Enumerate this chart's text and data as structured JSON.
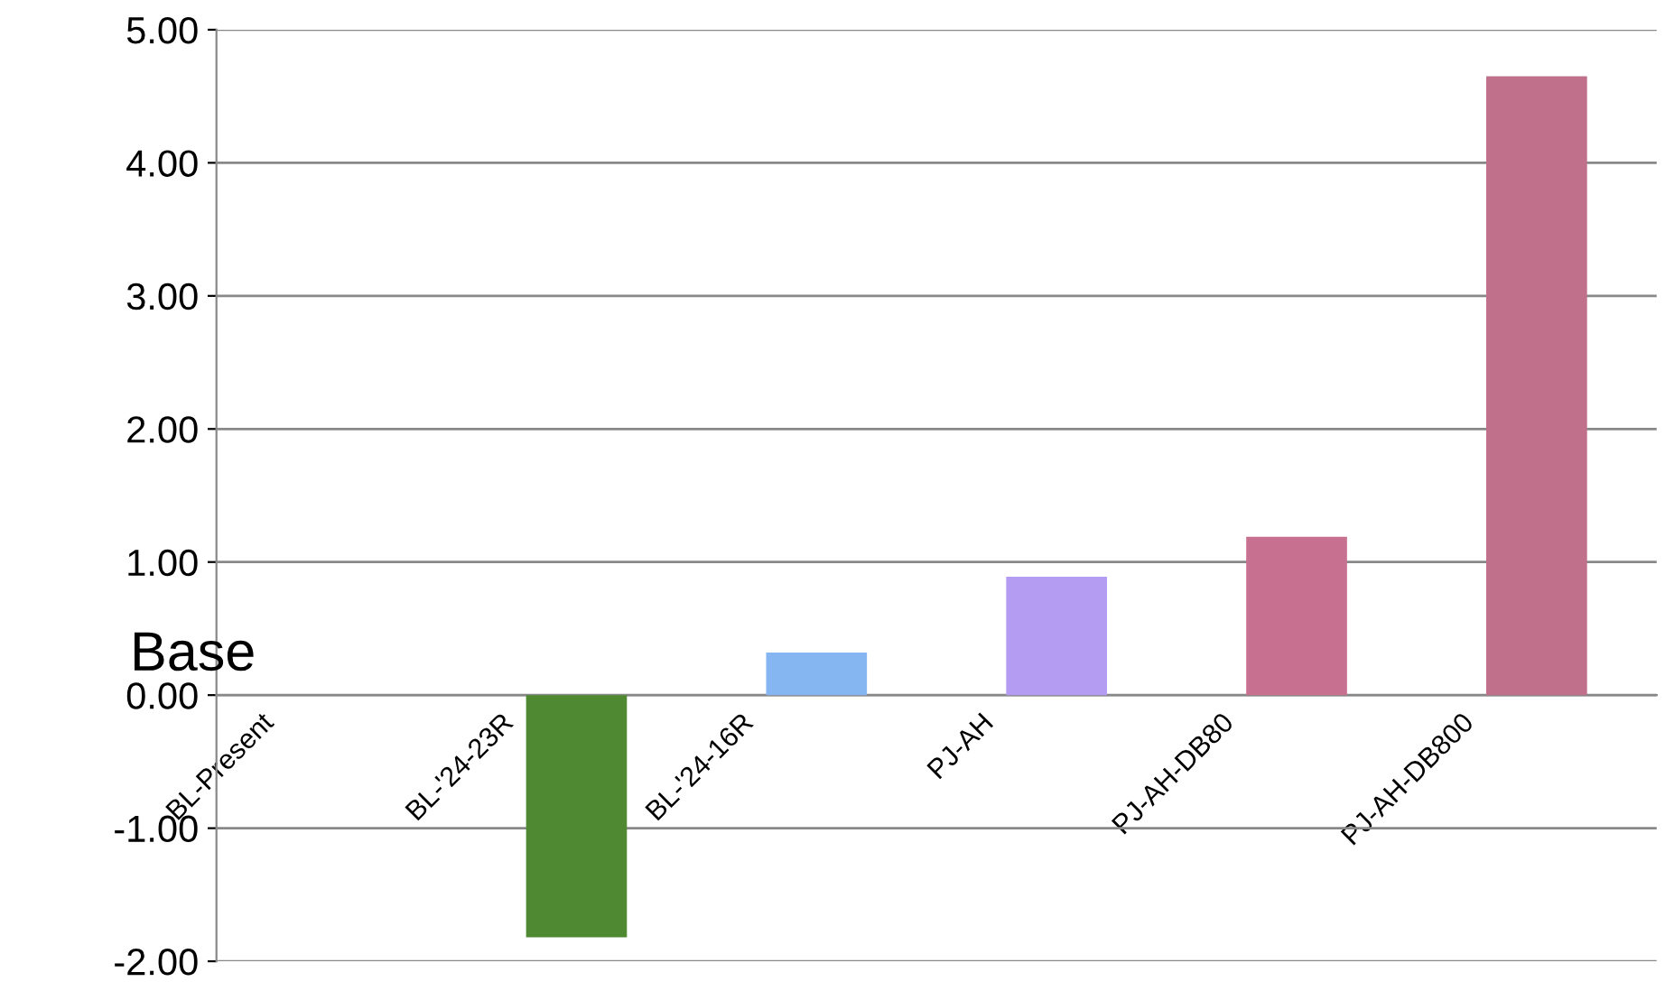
{
  "chart_data": {
    "type": "bar",
    "categories": [
      "BL-Present",
      "BL-'24-23R",
      "BL-'24-16R",
      "PJ-AH",
      "PJ-AH-DB80",
      "PJ-AH-DB800"
    ],
    "values": [
      0,
      -1.82,
      0.32,
      0.89,
      1.19,
      4.65
    ],
    "colors": [
      "#8fbcf5",
      "#4f8a32",
      "#86b6f2",
      "#b49cf2",
      "#c8708f",
      "#c0708a"
    ],
    "ylim": [
      -2,
      5
    ],
    "yticks": [
      {
        "value": -2,
        "label": "-2.00"
      },
      {
        "value": -1,
        "label": "-1.00"
      },
      {
        "value": 0,
        "label": "0.00"
      },
      {
        "value": 1,
        "label": "1.00"
      },
      {
        "value": 2,
        "label": "2.00"
      },
      {
        "value": 3,
        "label": "3.00"
      },
      {
        "value": 4,
        "label": "4.00"
      },
      {
        "value": 5,
        "label": "5.00"
      }
    ],
    "grid": "y",
    "annotations": [
      "Base"
    ]
  }
}
